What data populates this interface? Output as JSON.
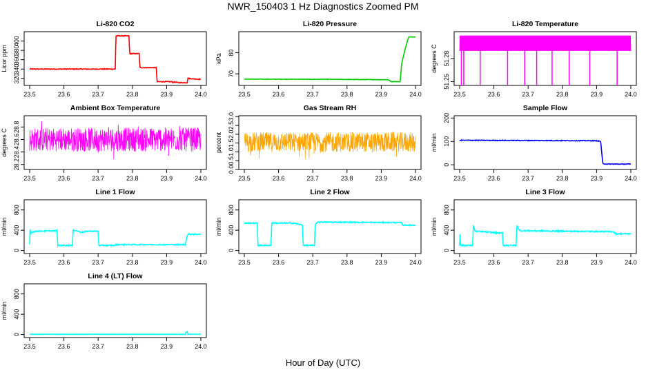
{
  "title": "NWR_150403  1 Hz Diagnostics Zoomed PM",
  "xlabel": "Hour of Day (UTC)",
  "chart_data": [
    {
      "type": "line",
      "title": "Li-820 CO2",
      "ylabel": "Licor ppm",
      "color": "#ff0000",
      "xlim": [
        23.5,
        24.0
      ],
      "ylim": [
        305,
        420
      ],
      "xticks": [
        "23.5",
        "23.6",
        "23.7",
        "23.8",
        "23.9",
        "24.0"
      ],
      "yticks": [
        "320",
        "340",
        "360",
        "380",
        "400"
      ],
      "noise": 0.8,
      "series": [
        {
          "x": [
            23.5,
            23.75,
            23.752,
            23.79,
            23.792,
            23.82,
            23.822,
            23.87,
            23.872,
            23.915,
            23.917,
            23.93,
            23.932,
            23.96,
            23.962,
            24.0
          ],
          "y": [
            340,
            340,
            411,
            411,
            373,
            373,
            343,
            343,
            313,
            313,
            312,
            312,
            311,
            311,
            320,
            318
          ]
        }
      ]
    },
    {
      "type": "line",
      "title": "Li-820 Pressure",
      "ylabel": "kPa",
      "color": "#00cc00",
      "xlim": [
        23.5,
        24.0
      ],
      "ylim": [
        64.5,
        90
      ],
      "xticks": [
        "23.5",
        "23.6",
        "23.7",
        "23.8",
        "23.9",
        "24.0"
      ],
      "yticks": [
        "70",
        "80"
      ],
      "noise": 0.1,
      "series": [
        {
          "x": [
            23.5,
            23.75,
            23.92,
            23.93,
            23.955,
            23.96,
            23.97,
            23.98,
            24.0
          ],
          "y": [
            67.5,
            67.4,
            67.2,
            66.3,
            66.3,
            75,
            82,
            87.5,
            87.5
          ]
        }
      ]
    },
    {
      "type": "line",
      "title": "Li-820 Temperature",
      "ylabel": "degrees C",
      "color": "#ff00ff",
      "xlim": [
        23.5,
        24.0
      ],
      "ylim": [
        51.245,
        51.315
      ],
      "xticks": [
        "23.5",
        "23.6",
        "23.7",
        "23.8",
        "23.9",
        "24.0"
      ],
      "yticks": [
        "51.25",
        "51.28"
      ],
      "band": [
        51.29,
        51.31
      ],
      "spikes": [
        23.505,
        23.512,
        23.56,
        23.64,
        23.69,
        23.725,
        23.77,
        23.82,
        23.88,
        23.96
      ],
      "spike_low": 51.245
    },
    {
      "type": "line",
      "title": "Ambient Box Temperature",
      "ylabel": "degrees C",
      "color": "#ff00ff",
      "xlim": [
        23.5,
        24.0
      ],
      "ylim": [
        28.12,
        28.98
      ],
      "xticks": [
        "23.5",
        "23.6",
        "23.7",
        "23.8",
        "23.9",
        "24.0"
      ],
      "yticks": [
        "28.2",
        "28.4",
        "28.6",
        "28.8"
      ],
      "band": [
        28.33,
        28.84
      ],
      "center": 28.6
    },
    {
      "type": "line",
      "title": "Gas Stream RH",
      "ylabel": "percent",
      "color": "#ffa500",
      "xlim": [
        23.5,
        24.0
      ],
      "ylim": [
        0,
        3.05
      ],
      "xticks": [
        "23.5",
        "23.6",
        "23.7",
        "23.8",
        "23.9",
        "24.0"
      ],
      "yticks": [
        "0.0",
        "0.5",
        "1.0",
        "1.5",
        "2.0",
        "2.5",
        "3.0"
      ],
      "band": [
        0.8,
        2.3
      ],
      "center": 1.55
    },
    {
      "type": "line",
      "title": "Sample Flow",
      "ylabel": "ml/min",
      "color": "#0000ff",
      "xlim": [
        23.5,
        24.0
      ],
      "ylim": [
        -20,
        210
      ],
      "xticks": [
        "23.5",
        "23.6",
        "23.7",
        "23.8",
        "23.9",
        "24.0"
      ],
      "yticks": [
        "0",
        "100",
        "200"
      ],
      "noise": 1.5,
      "series": [
        {
          "x": [
            23.5,
            23.9,
            23.912,
            23.918,
            23.93,
            24.0
          ],
          "y": [
            105,
            103,
            100,
            5,
            3,
            3
          ]
        }
      ]
    },
    {
      "type": "line",
      "title": "Line 1 Flow",
      "ylabel": "ml/min",
      "color": "#00ffff",
      "xlim": [
        23.5,
        24.0
      ],
      "ylim": [
        -60,
        1000
      ],
      "xticks": [
        "23.5",
        "23.6",
        "23.7",
        "23.8",
        "23.9",
        "24.0"
      ],
      "yticks": [
        "0",
        "400",
        "800"
      ],
      "noise": 10,
      "series": [
        {
          "x": [
            23.5,
            23.501,
            23.504,
            23.506,
            23.52,
            23.58,
            23.582,
            23.625,
            23.627,
            23.65,
            23.67,
            23.7,
            23.702,
            23.75,
            23.752,
            23.955,
            23.957,
            23.96,
            23.962,
            24.0
          ],
          "y": [
            120,
            420,
            340,
            360,
            380,
            390,
            100,
            100,
            410,
            360,
            380,
            380,
            100,
            100,
            115,
            115,
            200,
            280,
            320,
            320
          ]
        }
      ]
    },
    {
      "type": "line",
      "title": "Line 2 Flow",
      "ylabel": "ml/min",
      "color": "#00ffff",
      "xlim": [
        23.5,
        24.0
      ],
      "ylim": [
        -60,
        1000
      ],
      "xticks": [
        "23.5",
        "23.6",
        "23.7",
        "23.8",
        "23.9",
        "24.0"
      ],
      "yticks": [
        "0",
        "400",
        "800"
      ],
      "noise": 10,
      "series": [
        {
          "x": [
            23.5,
            23.538,
            23.54,
            23.578,
            23.58,
            23.645,
            23.67,
            23.672,
            23.705,
            23.707,
            23.713,
            23.96,
            23.962,
            24.0
          ],
          "y": [
            540,
            540,
            100,
            100,
            540,
            540,
            500,
            100,
            100,
            500,
            560,
            550,
            500,
            500
          ]
        }
      ]
    },
    {
      "type": "line",
      "title": "Line 3 Flow",
      "ylabel": "ml/min",
      "color": "#00ffff",
      "xlim": [
        23.5,
        24.0
      ],
      "ylim": [
        -60,
        1000
      ],
      "xticks": [
        "23.5",
        "23.6",
        "23.7",
        "23.8",
        "23.9",
        "24.0"
      ],
      "yticks": [
        "0",
        "400",
        "800"
      ],
      "noise": 12,
      "series": [
        {
          "x": [
            23.5,
            23.501,
            23.503,
            23.538,
            23.54,
            23.545,
            23.57,
            23.62,
            23.625,
            23.627,
            23.665,
            23.667,
            23.675,
            23.95,
            23.955,
            24.0
          ],
          "y": [
            100,
            360,
            100,
            100,
            500,
            380,
            370,
            340,
            350,
            100,
            100,
            500,
            390,
            370,
            330,
            330
          ]
        }
      ]
    },
    {
      "type": "line",
      "title": "Line 4 (LT) Flow",
      "ylabel": "ml/min",
      "color": "#00ffff",
      "xlim": [
        23.5,
        24.0
      ],
      "ylim": [
        -60,
        1000
      ],
      "xticks": [
        "23.5",
        "23.6",
        "23.7",
        "23.8",
        "23.9",
        "24.0"
      ],
      "yticks": [
        "0",
        "400",
        "800"
      ],
      "noise": 2,
      "series": [
        {
          "x": [
            23.5,
            23.955,
            23.957,
            23.96,
            23.962,
            24.0
          ],
          "y": [
            5,
            5,
            50,
            60,
            5,
            5
          ]
        }
      ]
    }
  ]
}
